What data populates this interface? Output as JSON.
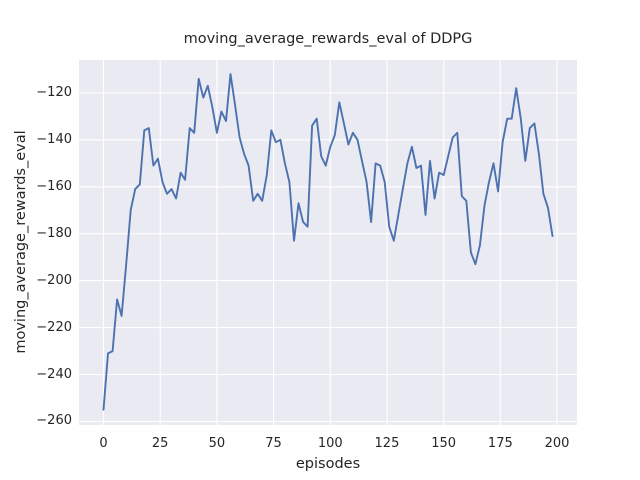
{
  "figure": {
    "title": "moving_average_rewards_eval of DDPG",
    "xlabel": "episodes",
    "ylabel": "moving_average_rewards_eval"
  },
  "chart_data": {
    "type": "line",
    "title": "moving_average_rewards_eval of DDPG",
    "xlabel": "episodes",
    "ylabel": "moving_average_rewards_eval",
    "xticks": [
      0,
      25,
      50,
      75,
      100,
      125,
      150,
      175,
      200
    ],
    "yticks": [
      -120,
      -140,
      -160,
      -180,
      -200,
      -220,
      -240,
      -260
    ],
    "xlim": [
      -10.8,
      208.8
    ],
    "ylim": [
      -261.5,
      -106.0
    ],
    "grid": true,
    "legend_position": "none",
    "style": {
      "fig_bg": "#FFFFFF",
      "plot_bg": "#EAEAF2",
      "grid_color": "#FFFFFF",
      "line_color": "#4C72B0",
      "text_color": "#262626"
    },
    "series": [
      {
        "name": "moving_average_rewards_eval",
        "color": "#4C72B0",
        "x": [
          0,
          2,
          4,
          6,
          8,
          10,
          12,
          14,
          16,
          18,
          20,
          22,
          24,
          26,
          28,
          30,
          32,
          34,
          36,
          38,
          40,
          42,
          44,
          46,
          48,
          50,
          52,
          54,
          56,
          58,
          60,
          62,
          64,
          66,
          68,
          70,
          72,
          74,
          76,
          78,
          80,
          82,
          84,
          86,
          88,
          90,
          92,
          94,
          96,
          98,
          100,
          102,
          104,
          106,
          108,
          110,
          112,
          114,
          116,
          118,
          120,
          122,
          124,
          126,
          128,
          130,
          132,
          134,
          136,
          138,
          140,
          142,
          144,
          146,
          148,
          150,
          152,
          154,
          156,
          158,
          160,
          162,
          164,
          166,
          168,
          170,
          172,
          174,
          176,
          178,
          180,
          182,
          184,
          186,
          188,
          190,
          192,
          194,
          196,
          198
        ],
        "y": [
          -255,
          -231,
          -230,
          -208,
          -215,
          -193,
          -170,
          -161,
          -159,
          -136,
          -135,
          -151,
          -148,
          -158,
          -163,
          -161,
          -165,
          -154,
          -157,
          -135,
          -137,
          -114,
          -122,
          -117,
          -126,
          -137,
          -128,
          -132,
          -112,
          -125,
          -139,
          -146,
          -151,
          -166,
          -163,
          -166,
          -155,
          -136,
          -141,
          -140,
          -150,
          -158,
          -183,
          -167,
          -175,
          -177,
          -134,
          -131,
          -147,
          -151,
          -143,
          -138,
          -124,
          -133,
          -142,
          -137,
          -140,
          -149,
          -158,
          -175,
          -150,
          -151,
          -158,
          -177,
          -183,
          -172,
          -161,
          -150,
          -143,
          -152,
          -151,
          -172,
          -149,
          -165,
          -154,
          -155,
          -147,
          -139,
          -137,
          -164,
          -166,
          -188,
          -193,
          -185,
          -168,
          -158,
          -150,
          -162,
          -141,
          -131,
          -131,
          -118,
          -131,
          -149,
          -135,
          -133,
          -146,
          -163,
          -169,
          -181
        ]
      }
    ]
  }
}
